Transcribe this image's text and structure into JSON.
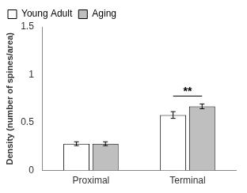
{
  "chart_data": {
    "type": "bar",
    "categories": [
      "Proximal",
      "Terminal"
    ],
    "series": [
      {
        "name": "Young Adult",
        "color": "#ffffff",
        "values": [
          0.28,
          0.58
        ],
        "errors": [
          0.02,
          0.035
        ]
      },
      {
        "name": "Aging",
        "color": "#bfbfbf",
        "values": [
          0.28,
          0.67
        ],
        "errors": [
          0.02,
          0.025
        ]
      }
    ],
    "y_label": "Density (number of spines/area)",
    "ylim": [
      0,
      1.5
    ],
    "yticks": [
      0,
      0.5,
      1,
      1.5
    ],
    "grid": false,
    "legend": "top-left",
    "annotations": [
      {
        "text": "**",
        "category": "Terminal"
      }
    ]
  }
}
